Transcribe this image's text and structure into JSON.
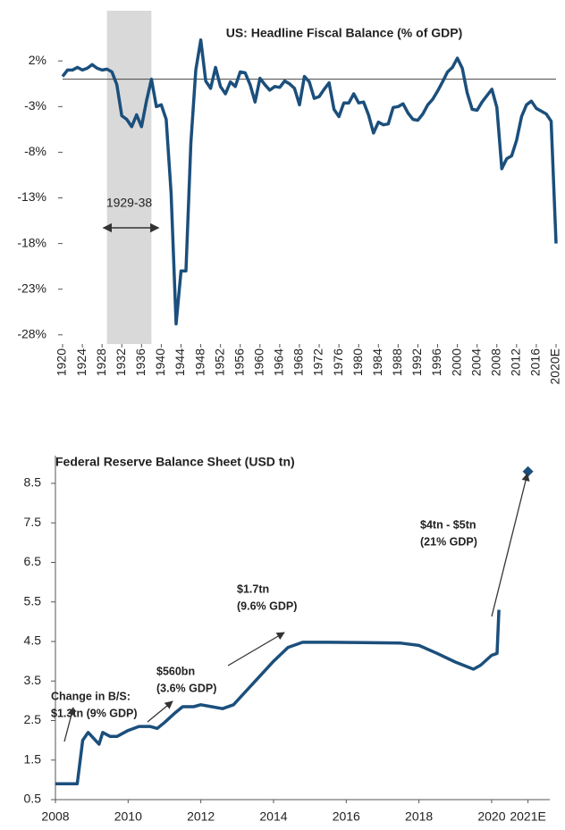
{
  "chart_data": [
    {
      "type": "line",
      "title": "US: Headline Fiscal Balance (% of GDP)",
      "x": [
        1920,
        1921,
        1922,
        1923,
        1924,
        1925,
        1926,
        1927,
        1928,
        1929,
        1930,
        1931,
        1932,
        1933,
        1934,
        1935,
        1936,
        1937,
        1938,
        1939,
        1940,
        1941,
        1942,
        1943,
        1944,
        1945,
        1946,
        1947,
        1948,
        1949,
        1950,
        1951,
        1952,
        1953,
        1954,
        1955,
        1956,
        1957,
        1958,
        1959,
        1960,
        1961,
        1962,
        1963,
        1964,
        1965,
        1966,
        1967,
        1968,
        1969,
        1970,
        1971,
        1972,
        1973,
        1974,
        1975,
        1976,
        1977,
        1978,
        1979,
        1980,
        1981,
        1982,
        1983,
        1984,
        1985,
        1986,
        1987,
        1988,
        1989,
        1990,
        1991,
        1992,
        1993,
        1994,
        1995,
        1996,
        1997,
        1998,
        1999,
        2000,
        2001,
        2002,
        2003,
        2004,
        2005,
        2006,
        2007,
        2008,
        2009,
        2010,
        2011,
        2012,
        2013,
        2014,
        2015,
        2016,
        2017,
        2018,
        2019,
        2020
      ],
      "series": [
        {
          "name": "Headline fiscal balance",
          "color": "#1b4f7c",
          "values": [
            0.3,
            1.0,
            1.0,
            1.3,
            1.0,
            1.2,
            1.6,
            1.2,
            1.0,
            1.1,
            0.8,
            -0.6,
            -4.0,
            -4.4,
            -5.2,
            -3.9,
            -5.2,
            -2.4,
            0.0,
            -3.0,
            -2.8,
            -4.4,
            -12.5,
            -26.8,
            -21.0,
            -21.0,
            -7.0,
            1.0,
            4.3,
            -0.2,
            -1.0,
            1.3,
            -0.8,
            -1.6,
            -0.3,
            -0.8,
            0.8,
            0.7,
            -0.6,
            -2.5,
            0.1,
            -0.6,
            -1.2,
            -0.8,
            -0.9,
            -0.2,
            -0.5,
            -1.0,
            -2.8,
            0.3,
            -0.3,
            -2.1,
            -1.9,
            -1.1,
            -0.4,
            -3.3,
            -4.1,
            -2.6,
            -2.6,
            -1.6,
            -2.6,
            -2.5,
            -3.9,
            -5.9,
            -4.7,
            -5.0,
            -4.9,
            -3.1,
            -3.0,
            -2.7,
            -3.7,
            -4.4,
            -4.5,
            -3.8,
            -2.8,
            -2.2,
            -1.3,
            -0.3,
            0.8,
            1.3,
            2.3,
            1.2,
            -1.5,
            -3.3,
            -3.4,
            -2.5,
            -1.8,
            -1.1,
            -3.1,
            -9.8,
            -8.7,
            -8.4,
            -6.7,
            -4.1,
            -2.8,
            -2.4,
            -3.2,
            -3.5,
            -3.8,
            -4.6,
            -18.0
          ]
        }
      ],
      "xlim": [
        1920,
        2020
      ],
      "xticks": [
        1920,
        1924,
        1928,
        1932,
        1936,
        1940,
        1944,
        1948,
        1952,
        1956,
        1960,
        1964,
        1968,
        1972,
        1976,
        1980,
        1984,
        1988,
        1992,
        1996,
        2000,
        2004,
        2008,
        2012,
        2016,
        {
          "value": 2020,
          "label": "2020E"
        }
      ],
      "ylim": [
        -29,
        7.5
      ],
      "yticks": [
        {
          "value": 2,
          "label": "2%"
        },
        {
          "value": -3,
          "label": "-3%"
        },
        {
          "value": -8,
          "label": "-8%"
        },
        {
          "value": -13,
          "label": "-13%"
        },
        {
          "value": -18,
          "label": "-18%"
        },
        {
          "value": -23,
          "label": "-23%"
        },
        {
          "value": -28,
          "label": "-28%"
        }
      ],
      "shade": [
        1929,
        1938
      ],
      "shade_label": "1929-38"
    },
    {
      "type": "line",
      "title": "Federal Reserve Balance Sheet (USD tn)",
      "x": [
        2008.0,
        2008.6,
        2008.75,
        2008.9,
        2009.0,
        2009.2,
        2009.3,
        2009.5,
        2009.7,
        2010.0,
        2010.3,
        2010.6,
        2010.8,
        2011.0,
        2011.3,
        2011.5,
        2011.8,
        2012.0,
        2012.3,
        2012.6,
        2012.9,
        2013.2,
        2013.6,
        2014.0,
        2014.4,
        2014.8,
        2015.5,
        2016.5,
        2017.5,
        2018.0,
        2018.5,
        2019.0,
        2019.5,
        2019.7,
        2020.0,
        2020.15,
        2020.2
      ],
      "series": [
        {
          "name": "Fed balance sheet",
          "color": "#1b4f7c",
          "values": [
            0.9,
            0.9,
            2.0,
            2.2,
            2.1,
            1.9,
            2.2,
            2.1,
            2.1,
            2.25,
            2.35,
            2.35,
            2.3,
            2.45,
            2.7,
            2.85,
            2.85,
            2.9,
            2.85,
            2.8,
            2.9,
            3.2,
            3.6,
            4.0,
            4.35,
            4.48,
            4.48,
            4.47,
            4.46,
            4.4,
            4.2,
            3.98,
            3.8,
            3.9,
            4.15,
            4.2,
            5.3
          ]
        }
      ],
      "estimate": {
        "x": 2021,
        "value": 8.8
      },
      "xlim": [
        2008,
        2021.6
      ],
      "xticks": [
        2008,
        2010,
        2012,
        2014,
        2016,
        2018,
        2020,
        {
          "value": 2021,
          "label": "2021E"
        }
      ],
      "ylim": [
        0.5,
        9.2
      ],
      "yticks": [
        0.5,
        1.5,
        2.5,
        3.5,
        4.5,
        5.5,
        6.5,
        7.5,
        8.5
      ],
      "annotations": [
        {
          "lines": [
            "Change in B/S:",
            "$1.3tn (9% GDP)"
          ]
        },
        {
          "lines": [
            "$560bn",
            "(3.6% GDP)"
          ]
        },
        {
          "lines": [
            "$1.7tn",
            "(9.6% GDP)"
          ]
        },
        {
          "lines": [
            "$4tn - $5tn",
            "(21% GDP)"
          ]
        }
      ]
    }
  ]
}
